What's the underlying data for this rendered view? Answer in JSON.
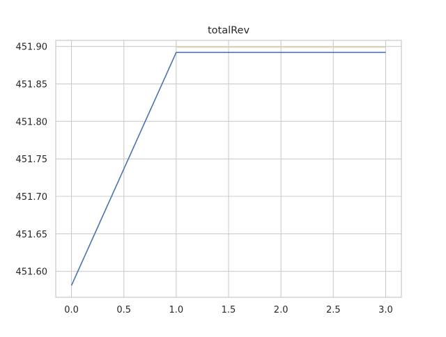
{
  "chart_data": {
    "type": "line",
    "title": "totalRev",
    "xlabel": "",
    "ylabel": "",
    "xlim": [
      -0.15,
      3.15
    ],
    "ylim": [
      451.5653,
      451.9081
    ],
    "x_ticks": [
      0.0,
      0.5,
      1.0,
      1.5,
      2.0,
      2.5,
      3.0
    ],
    "x_tick_labels": [
      "0.0",
      "0.5",
      "1.0",
      "1.5",
      "2.0",
      "2.5",
      "3.0"
    ],
    "y_ticks": [
      451.6,
      451.65,
      451.7,
      451.75,
      451.8,
      451.85,
      451.9
    ],
    "y_tick_labels": [
      "451.60",
      "451.65",
      "451.70",
      "451.75",
      "451.80",
      "451.85",
      "451.90"
    ],
    "grid": true,
    "series": [
      {
        "x": [
          0,
          1,
          2,
          3
        ],
        "y": [
          451.581,
          451.892,
          451.892,
          451.892
        ],
        "color": "#4c72b0"
      }
    ],
    "reference_line": {
      "x": [
        1,
        3
      ],
      "y": [
        451.899,
        451.899
      ],
      "color": "#ddd5b0"
    },
    "colors": {
      "grid": "#cccccc",
      "spine": "#cccccc",
      "text": "#262626",
      "background": "#ffffff"
    }
  }
}
